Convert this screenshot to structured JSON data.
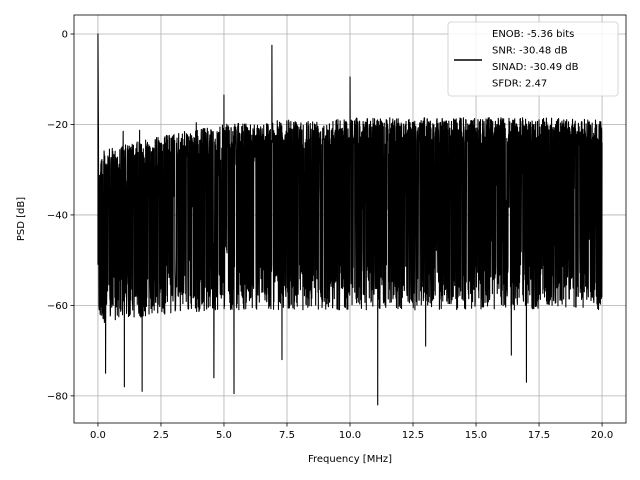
{
  "chart_data": {
    "type": "line",
    "title": "",
    "xlabel": "Frequency [MHz]",
    "ylabel": "PSD [dB]",
    "xlim": [
      -0.95,
      20.95
    ],
    "ylim": [
      -86,
      4.2
    ],
    "xticks": [
      0.0,
      2.5,
      5.0,
      7.5,
      10.0,
      12.5,
      15.0,
      17.5,
      20.0
    ],
    "xtick_labels": [
      "0.0",
      "2.5",
      "5.0",
      "7.5",
      "10.0",
      "12.5",
      "15.0",
      "17.5",
      "20.0"
    ],
    "yticks": [
      0,
      -20,
      -40,
      -60,
      -80
    ],
    "ytick_labels": [
      "0",
      "−20",
      "−40",
      "−60",
      "−80"
    ],
    "grid": true,
    "legend_position": "upper right",
    "series": [
      {
        "name": "ENOB: -5.36 bits\nSNR: -30.48 dB\nSINAD: -30.49 dB\nSFDR: 2.47",
        "color": "#000000",
        "upper_envelope": {
          "x": [
            0.05,
            2.5,
            5.0,
            7.5,
            10.0,
            12.5,
            15.0,
            17.5,
            20.0
          ],
          "y": [
            -26,
            -22.5,
            -20,
            -19,
            -18.5,
            -18.5,
            -18.5,
            -18.5,
            -19
          ]
        },
        "lower_envelope": {
          "x": [
            0.05,
            2.5,
            5.0,
            7.5,
            10.0,
            12.5,
            15.0,
            17.5,
            20.0
          ],
          "y": [
            -64,
            -62,
            -61,
            -61,
            -61,
            -61,
            -61,
            -61,
            -61
          ]
        },
        "peaks": [
          {
            "x": 0.0,
            "y": 0
          },
          {
            "x": 6.9,
            "y": -2.5
          },
          {
            "x": 10.0,
            "y": -9.5
          },
          {
            "x": 5.0,
            "y": -13.5
          },
          {
            "x": 1.0,
            "y": -21.5
          },
          {
            "x": 1.65,
            "y": -21.3
          },
          {
            "x": 3.9,
            "y": -19.6
          }
        ],
        "dips": [
          {
            "x": 0.3,
            "y": -75
          },
          {
            "x": 1.05,
            "y": -78
          },
          {
            "x": 1.75,
            "y": -79
          },
          {
            "x": 4.6,
            "y": -76
          },
          {
            "x": 5.4,
            "y": -79.5
          },
          {
            "x": 7.3,
            "y": -72
          },
          {
            "x": 11.1,
            "y": -82
          },
          {
            "x": 17.0,
            "y": -77
          },
          {
            "x": 16.4,
            "y": -71
          },
          {
            "x": 13.0,
            "y": -69
          }
        ]
      }
    ]
  }
}
